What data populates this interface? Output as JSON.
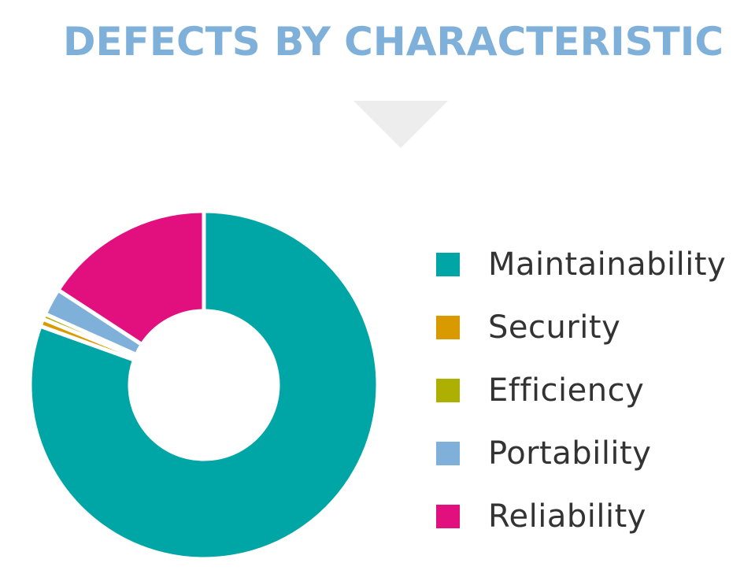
{
  "chart_data": {
    "type": "pie",
    "title": "DEFECTS BY CHARACTERISTIC",
    "donut": true,
    "categories": [
      "Maintainability",
      "Security",
      "Efficiency",
      "Portability",
      "Reliability"
    ],
    "values": [
      80.5,
      0.7,
      0.5,
      2.5,
      15.8
    ],
    "unit": "%",
    "colors": [
      "#00a5a6",
      "#d99a00",
      "#adb000",
      "#7eb0d9",
      "#e20f7f"
    ],
    "legend_position": "right"
  }
}
